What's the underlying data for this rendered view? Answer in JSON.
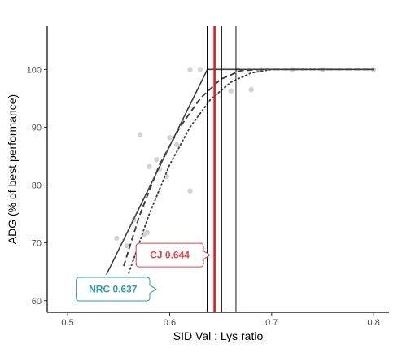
{
  "chart_data": {
    "type": "scatter",
    "xlabel": "SID Val : Lys ratio",
    "ylabel": "ADG (% of best performance)",
    "xlim": [
      0.48,
      0.815
    ],
    "ylim": [
      58,
      107.5
    ],
    "x_ticks": [
      0.5,
      0.6,
      0.7,
      0.8
    ],
    "x_tick_labels": [
      "0.5",
      "0.6",
      "0.7",
      "0.8"
    ],
    "y_ticks": [
      60,
      70,
      80,
      90,
      100
    ],
    "y_tick_labels": [
      "60",
      "70",
      "80",
      "90",
      "100"
    ],
    "grid": false,
    "point_color": "#d3d3d3",
    "points": [
      {
        "x": 0.548,
        "y": 70.8
      },
      {
        "x": 0.558,
        "y": 69.5
      },
      {
        "x": 0.565,
        "y": 74.0
      },
      {
        "x": 0.571,
        "y": 88.7
      },
      {
        "x": 0.575,
        "y": 71.5
      },
      {
        "x": 0.578,
        "y": 71.8
      },
      {
        "x": 0.58,
        "y": 83.2
      },
      {
        "x": 0.587,
        "y": 84.4
      },
      {
        "x": 0.59,
        "y": 82.8
      },
      {
        "x": 0.597,
        "y": 81.5
      },
      {
        "x": 0.6,
        "y": 88.2
      },
      {
        "x": 0.607,
        "y": 87.0
      },
      {
        "x": 0.62,
        "y": 79.0
      },
      {
        "x": 0.62,
        "y": 100.0
      },
      {
        "x": 0.63,
        "y": 100.0
      },
      {
        "x": 0.66,
        "y": 96.3
      },
      {
        "x": 0.667,
        "y": 100.0
      },
      {
        "x": 0.68,
        "y": 96.5
      },
      {
        "x": 0.69,
        "y": 100.0
      },
      {
        "x": 0.72,
        "y": 100.0
      },
      {
        "x": 0.75,
        "y": 100.0
      },
      {
        "x": 0.8,
        "y": 100.0
      }
    ],
    "broken_line": {
      "style": "solid",
      "color": "#404040",
      "points": [
        [
          0.538,
          64.5
        ],
        [
          0.637,
          100.0
        ],
        [
          0.8,
          100.0
        ]
      ]
    },
    "curves": [
      {
        "style": "dashed",
        "color": "#404040",
        "points": [
          [
            0.555,
            66.0
          ],
          [
            0.57,
            74.5
          ],
          [
            0.59,
            83.5
          ],
          [
            0.61,
            90.0
          ],
          [
            0.63,
            95.0
          ],
          [
            0.65,
            98.3
          ],
          [
            0.67,
            99.8
          ],
          [
            0.69,
            100.0
          ],
          [
            0.8,
            100.0
          ]
        ]
      },
      {
        "style": "dotted",
        "color": "#404040",
        "points": [
          [
            0.56,
            64.8
          ],
          [
            0.58,
            75.0
          ],
          [
            0.6,
            83.5
          ],
          [
            0.62,
            90.0
          ],
          [
            0.64,
            94.8
          ],
          [
            0.66,
            97.8
          ],
          [
            0.68,
            99.4
          ],
          [
            0.7,
            100.0
          ],
          [
            0.8,
            100.0
          ]
        ]
      }
    ],
    "vertical_lines": [
      {
        "x": 0.637,
        "color": "#000000",
        "style": "thick"
      },
      {
        "x": 0.644,
        "color": "#e31a1c",
        "style": "thick"
      },
      {
        "x": 0.651,
        "color": "#000000",
        "style": "thin"
      },
      {
        "x": 0.665,
        "color": "#000000",
        "style": "thin"
      }
    ],
    "annotations": [
      {
        "label": "CJ 0.644",
        "color": "#e8414c",
        "x": 0.644,
        "y": 67.9
      },
      {
        "label": "NRC 0.637",
        "color": "#2aa1a6",
        "x": 0.637,
        "y": 62.0
      }
    ]
  }
}
